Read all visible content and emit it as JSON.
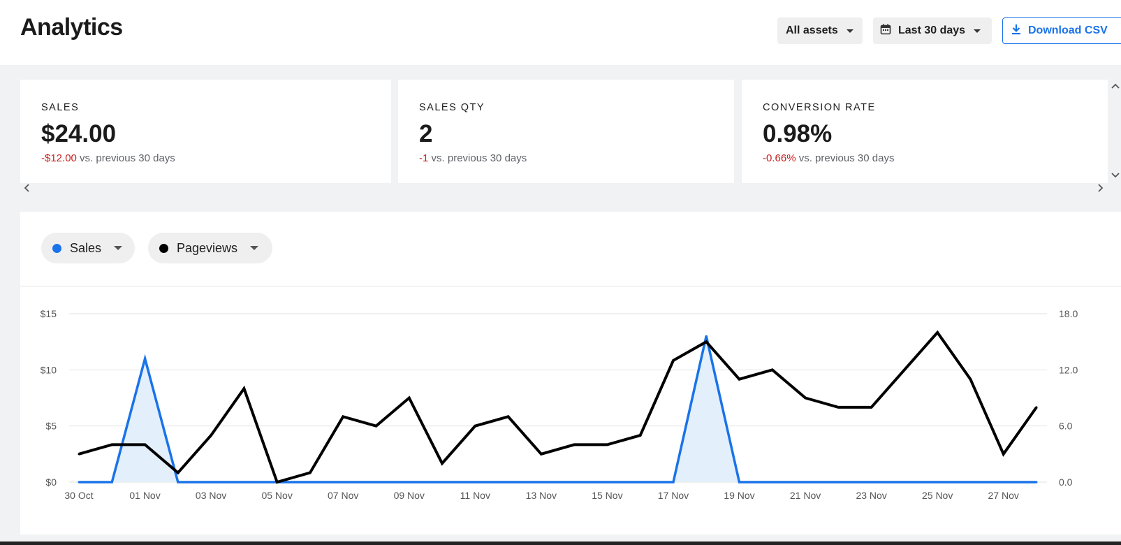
{
  "header": {
    "title": "Analytics",
    "assets_label": "All assets",
    "range_label": "Last 30 days",
    "download_label": "Download CSV"
  },
  "cards": [
    {
      "label": "SALES",
      "value": "$24.00",
      "delta": "-$12.00",
      "delta_text": "vs. previous 30 days"
    },
    {
      "label": "SALES QTY",
      "value": "2",
      "delta": "-1",
      "delta_text": "vs. previous 30 days"
    },
    {
      "label": "CONVERSION RATE",
      "value": "0.98%",
      "delta": "-0.66%",
      "delta_text": "vs. previous 30 days"
    }
  ],
  "metrics": [
    {
      "label": "Sales",
      "color": "#1a73e8"
    },
    {
      "label": "Pageviews",
      "color": "#000000"
    }
  ],
  "colors": {
    "accent": "#1a73e8",
    "negative": "#c5221f",
    "sales_fill": "#e3f0fb"
  },
  "chart_data": {
    "type": "line",
    "x": [
      "30 Oct",
      "31 Oct",
      "01 Nov",
      "02 Nov",
      "03 Nov",
      "04 Nov",
      "05 Nov",
      "06 Nov",
      "07 Nov",
      "08 Nov",
      "09 Nov",
      "10 Nov",
      "11 Nov",
      "12 Nov",
      "13 Nov",
      "14 Nov",
      "15 Nov",
      "16 Nov",
      "17 Nov",
      "18 Nov",
      "19 Nov",
      "20 Nov",
      "21 Nov",
      "22 Nov",
      "23 Nov",
      "24 Nov",
      "25 Nov",
      "26 Nov",
      "27 Nov",
      "28 Nov"
    ],
    "x_tick_labels": [
      "30 Oct",
      "01 Nov",
      "03 Nov",
      "05 Nov",
      "07 Nov",
      "09 Nov",
      "11 Nov",
      "13 Nov",
      "15 Nov",
      "17 Nov",
      "19 Nov",
      "21 Nov",
      "23 Nov",
      "25 Nov",
      "27 Nov"
    ],
    "series": [
      {
        "name": "Sales",
        "axis": "left",
        "color": "#1a73e8",
        "area": true,
        "values": [
          0,
          0,
          11,
          0,
          0,
          0,
          0,
          0,
          0,
          0,
          0,
          0,
          0,
          0,
          0,
          0,
          0,
          0,
          0,
          13,
          0,
          0,
          0,
          0,
          0,
          0,
          0,
          0,
          0,
          0
        ]
      },
      {
        "name": "Pageviews",
        "axis": "right",
        "color": "#000000",
        "values": [
          3,
          4,
          4,
          1,
          5,
          10,
          0,
          1,
          7,
          6,
          9,
          2,
          6,
          7,
          3,
          4,
          4,
          5,
          13,
          15,
          11,
          12,
          9,
          8,
          8,
          12,
          16,
          11,
          3,
          8
        ]
      }
    ],
    "y_left": {
      "ticks": [
        "$0",
        "$5",
        "$10",
        "$15"
      ],
      "ylim": [
        0,
        15
      ]
    },
    "y_right": {
      "ticks": [
        "0.0",
        "6.0",
        "12.0",
        "18.0"
      ],
      "ylim": [
        0,
        18
      ]
    },
    "grid": true
  }
}
